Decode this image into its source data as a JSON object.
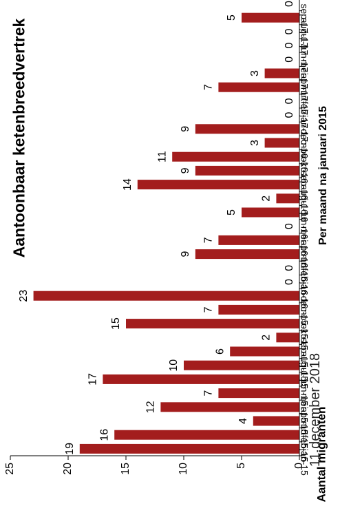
{
  "chart_data": {
    "type": "bar",
    "title": "Aantoonbaar ketenbreedvertrek",
    "subtitle": "Per maand na januari 2015",
    "xlabel": "",
    "ylabel": "Aantal migranten",
    "ylim": [
      0,
      25
    ],
    "yticks": [
      0,
      5,
      10,
      15,
      20,
      25
    ],
    "grid": false,
    "categories": [
      "jan-15",
      "feb-15",
      "mrt-15",
      "apr-15",
      "mei-15",
      "jun-15",
      "jul-15",
      "aug-15",
      "sep-15",
      "okt-15",
      "nov-15",
      "dec-15",
      "jan-16",
      "feb-16",
      "mrt-16",
      "apr-16",
      "mei-16",
      "jun-16",
      "jul-16",
      "aug-16",
      "sep-16",
      "okt-16",
      "nov-16",
      "dec-16",
      "jan-17",
      "feb-17",
      "mrt-17",
      "apr-17",
      "mei-17",
      "jun-17",
      "jul-17",
      "aug-17",
      "sep-17"
    ],
    "values": [
      19,
      16,
      4,
      12,
      7,
      17,
      10,
      6,
      2,
      15,
      7,
      23,
      0,
      0,
      9,
      7,
      0,
      5,
      2,
      14,
      9,
      11,
      3,
      9,
      0,
      0,
      7,
      3,
      0,
      0,
      0,
      5,
      0
    ],
    "bar_color": "#a31d1d"
  },
  "footer": {
    "date": "11 december 2018"
  }
}
